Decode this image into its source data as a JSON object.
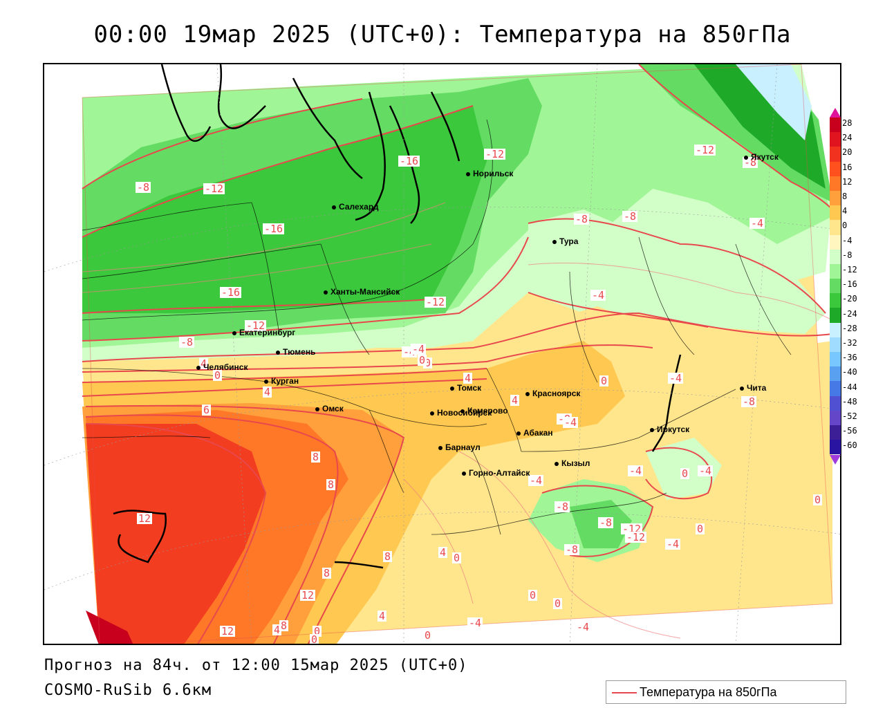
{
  "header": {
    "title": "00:00 19мар 2025 (UTC+0): Температура на 850гПа"
  },
  "footer": {
    "forecast": "Прогноз на 84ч. от 12:00 15мар 2025 (UTC+0)",
    "model": "COSMO-RuSib 6.6км"
  },
  "legend": {
    "label": "Температура на 850гПа",
    "line_color": "#e8484c"
  },
  "colorbar": {
    "ticks": [
      "28",
      "24",
      "20",
      "16",
      "12",
      "8",
      "4",
      "0",
      "-4",
      "-8",
      "-12",
      "-16",
      "-20",
      "-24",
      "-28",
      "-32",
      "-36",
      "-40",
      "-44",
      "-48",
      "-52",
      "-56",
      "-60"
    ],
    "colors": [
      "#c8001e",
      "#e0141e",
      "#f0321e",
      "#ff501e",
      "#ff7828",
      "#ffa03c",
      "#ffc850",
      "#ffe68c",
      "#fff5be",
      "#d2ffc8",
      "#a0f596",
      "#64dc64",
      "#3cc83c",
      "#1eaa28",
      "#c8f0ff",
      "#a0dcff",
      "#78c8ff",
      "#5aa0f0",
      "#4678e6",
      "#5050d2",
      "#6446c8",
      "#3c1e96",
      "#2814a0"
    ],
    "top_arrow_color": "#e0149a",
    "bottom_arrow_color": "#a03cdc"
  },
  "cities": [
    {
      "name": "Норильск"
    },
    {
      "name": "Салехард"
    },
    {
      "name": "Якутск"
    },
    {
      "name": "Тура"
    },
    {
      "name": "Ханты-Мансийск"
    },
    {
      "name": "Екатеринбург"
    },
    {
      "name": "Тюмень"
    },
    {
      "name": "Челябинск"
    },
    {
      "name": "Курган"
    },
    {
      "name": "Томск"
    },
    {
      "name": "Красноярск"
    },
    {
      "name": "Омск"
    },
    {
      "name": "Новосибирск"
    },
    {
      "name": "Кемерово"
    },
    {
      "name": "Абакан"
    },
    {
      "name": "Барнаул"
    },
    {
      "name": "Иркутск"
    },
    {
      "name": "Чита"
    },
    {
      "name": "Кызыл"
    },
    {
      "name": "Горно-Алтайск"
    }
  ],
  "isotherm_labels": [
    "-8",
    "-12",
    "-16",
    "-12",
    "-16",
    "-16",
    "-12",
    "-8",
    "-12",
    "-12",
    "-8",
    "-8",
    "-8",
    "-4",
    "-8",
    "-4",
    "0",
    "-4",
    "0",
    "-4",
    "4",
    "4",
    "4",
    "0",
    "4",
    "-4",
    "0",
    "-8",
    "-4",
    "6",
    "8",
    "8",
    "-4",
    "-8",
    "-4",
    "-8",
    "-12",
    "-8",
    "-12",
    "-4",
    "0",
    "-4",
    "0",
    "0",
    "12",
    "8",
    "8",
    "4",
    "0",
    "12",
    "4",
    "0",
    "-4",
    "-4",
    "12",
    "4",
    "8",
    "0",
    "0",
    "0",
    "0"
  ]
}
